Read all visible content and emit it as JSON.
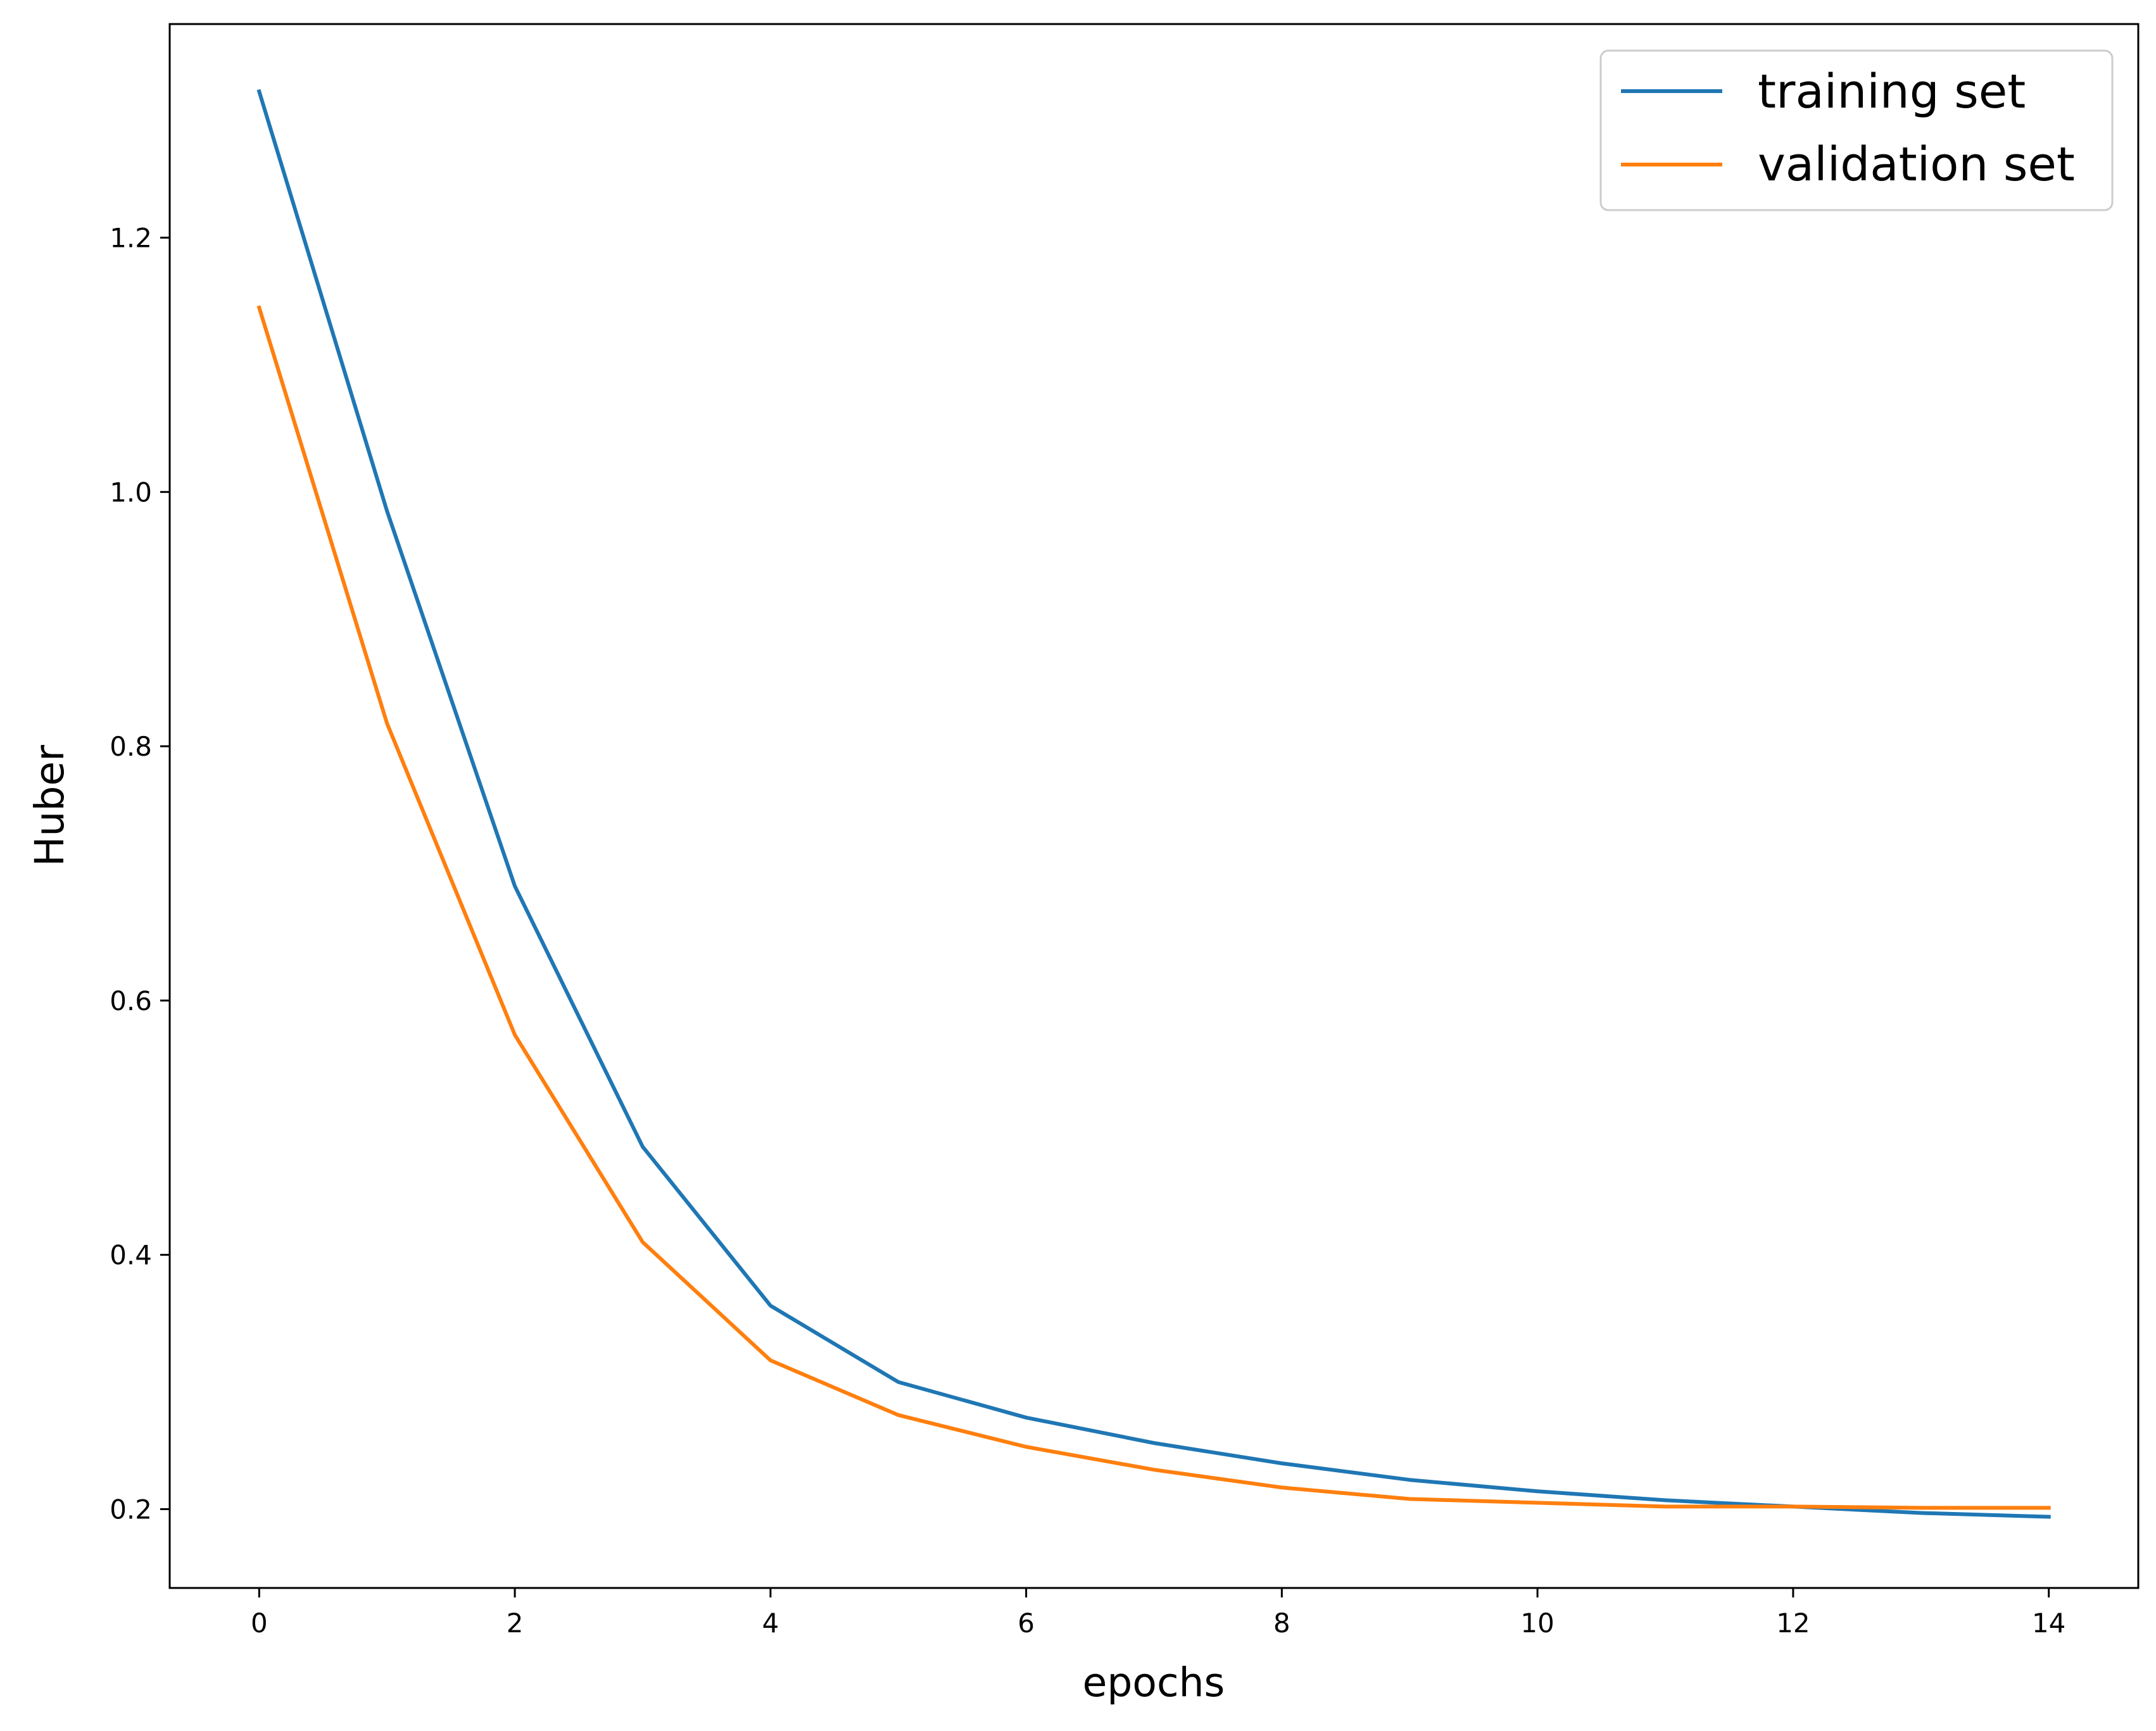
{
  "chart_data": {
    "type": "line",
    "title": "",
    "xlabel": "epochs",
    "ylabel": "Huber",
    "xlim": [
      -0.7,
      14.7
    ],
    "ylim": [
      0.138,
      1.368
    ],
    "xticks": [
      0,
      2,
      4,
      6,
      8,
      10,
      12,
      14
    ],
    "yticks": [
      0.2,
      0.4,
      0.6,
      0.8,
      1.0,
      1.2
    ],
    "ytick_labels": [
      "0.2",
      "0.4",
      "0.6",
      "0.8",
      "1.0",
      "1.2"
    ],
    "xtick_labels": [
      "0",
      "2",
      "4",
      "6",
      "8",
      "10",
      "12",
      "14"
    ],
    "grid": false,
    "legend_position": "top-right",
    "x": [
      0,
      1,
      2,
      3,
      4,
      5,
      6,
      7,
      8,
      9,
      10,
      11,
      12,
      13,
      14
    ],
    "series": [
      {
        "name": "training set",
        "color": "#1f77b4",
        "values": [
          1.315,
          0.985,
          0.69,
          0.485,
          0.36,
          0.3,
          0.272,
          0.252,
          0.236,
          0.223,
          0.214,
          0.207,
          0.202,
          0.197,
          0.194
        ]
      },
      {
        "name": "validation set",
        "color": "#ff7f0e",
        "values": [
          1.145,
          0.818,
          0.573,
          0.41,
          0.317,
          0.274,
          0.249,
          0.231,
          0.217,
          0.208,
          0.205,
          0.202,
          0.202,
          0.201,
          0.201
        ]
      }
    ]
  }
}
